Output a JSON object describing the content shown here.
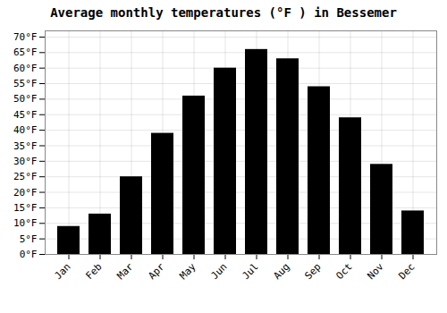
{
  "chart_data": {
    "type": "bar",
    "title": "Average monthly temperatures (°F ) in Bessemer",
    "categories": [
      "Jan",
      "Feb",
      "Mar",
      "Apr",
      "May",
      "Jun",
      "Jul",
      "Aug",
      "Sep",
      "Oct",
      "Nov",
      "Dec"
    ],
    "values": [
      9,
      13,
      25,
      39,
      51,
      60,
      66,
      63,
      54,
      44,
      29,
      14
    ],
    "ylim": [
      0,
      72
    ],
    "yticks": [
      {
        "value": 0,
        "label": "0°F"
      },
      {
        "value": 5,
        "label": "5°F"
      },
      {
        "value": 10,
        "label": "10°F"
      },
      {
        "value": 15,
        "label": "15°F"
      },
      {
        "value": 20,
        "label": "20°F"
      },
      {
        "value": 25,
        "label": "25°F"
      },
      {
        "value": 30,
        "label": "30°F"
      },
      {
        "value": 35,
        "label": "35°F"
      },
      {
        "value": 40,
        "label": "40°F"
      },
      {
        "value": 45,
        "label": "45°F"
      },
      {
        "value": 50,
        "label": "50°F"
      },
      {
        "value": 55,
        "label": "55°F"
      },
      {
        "value": 60,
        "label": "60°F"
      },
      {
        "value": 65,
        "label": "65°F"
      },
      {
        "value": 70,
        "label": "70°F"
      }
    ],
    "grid": true
  }
}
